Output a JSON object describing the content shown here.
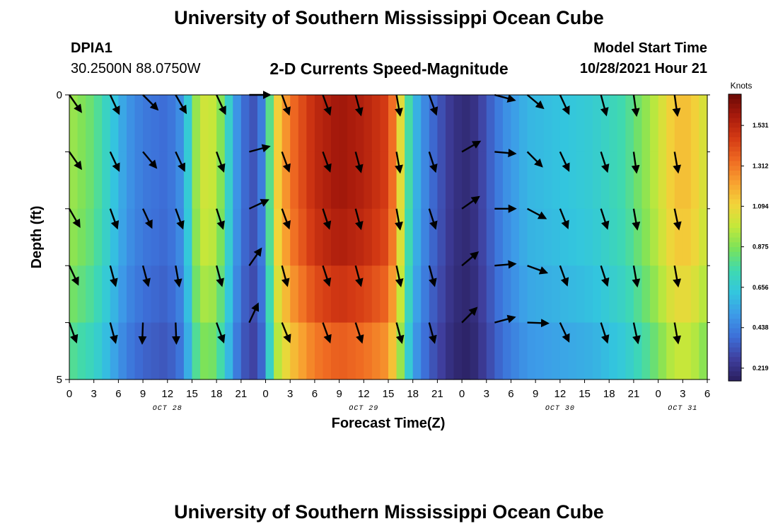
{
  "header": {
    "title": "University of Southern Mississippi Ocean Cube",
    "station": "DPIA1",
    "coords": "30.2500N  88.0750W",
    "subtitle": "2-D Currents Speed-Magnitude",
    "model_start_label": "Model Start Time",
    "model_start_value": "10/28/2021 Hour 21",
    "footer_title": "University of Southern Mississippi Ocean Cube"
  },
  "colors": {
    "colormap": [
      "#2a1f5e",
      "#3f3f9e",
      "#3d6fd8",
      "#3d9be8",
      "#33c6de",
      "#3fd9b0",
      "#7be25a",
      "#c4e83a",
      "#f2d43a",
      "#f8a030",
      "#ef6a22",
      "#d43a14",
      "#a81a0c",
      "#6a0a06"
    ]
  },
  "chart_data": {
    "type": "heatmap",
    "title": "2-D Currents Speed-Magnitude",
    "xlabel": "Forecast Time(Z)",
    "ylabel": "Depth (ft)",
    "x_tick_labels": [
      "0",
      "3",
      "6",
      "9",
      "12",
      "15",
      "18",
      "21",
      "0",
      "3",
      "6",
      "9",
      "12",
      "15",
      "18",
      "21",
      "0",
      "3",
      "6",
      "9",
      "12",
      "15",
      "18",
      "21",
      "0",
      "3",
      "6"
    ],
    "date_labels": [
      {
        "label": "OCT 28",
        "hour_offset": 12
      },
      {
        "label": "OCT 29",
        "hour_offset": 36
      },
      {
        "label": "OCT 30",
        "hour_offset": 60
      },
      {
        "label": "OCT 31",
        "hour_offset": 75
      }
    ],
    "y_tick_labels": [
      "0",
      "5"
    ],
    "ylim": [
      0,
      5
    ],
    "xlim_hours": [
      0,
      78
    ],
    "colorbar": {
      "label": "Knots",
      "range": [
        0.15,
        1.7
      ],
      "ticks": [
        "0.219",
        "0.438",
        "0.656",
        "0.875",
        "1.094",
        "1.312",
        "1.531"
      ]
    },
    "depth_rows": [
      0.5,
      1.5,
      2.5,
      3.5,
      4.5
    ],
    "speed_profile": [
      {
        "t": 0,
        "v": 0.93
      },
      {
        "t": 3,
        "v": 0.82
      },
      {
        "t": 5,
        "v": 0.66
      },
      {
        "t": 7,
        "v": 0.5
      },
      {
        "t": 9,
        "v": 0.42
      },
      {
        "t": 12,
        "v": 0.38
      },
      {
        "t": 14,
        "v": 0.5
      },
      {
        "t": 15,
        "v": 0.8
      },
      {
        "t": 16,
        "v": 1.02
      },
      {
        "t": 18,
        "v": 0.98
      },
      {
        "t": 19,
        "v": 0.78
      },
      {
        "t": 20,
        "v": 0.58
      },
      {
        "t": 21,
        "v": 0.4
      },
      {
        "t": 23,
        "v": 0.3
      },
      {
        "t": 24,
        "v": 0.55
      },
      {
        "t": 25,
        "v": 1.05
      },
      {
        "t": 27,
        "v": 1.32
      },
      {
        "t": 30,
        "v": 1.52
      },
      {
        "t": 33,
        "v": 1.6
      },
      {
        "t": 36,
        "v": 1.55
      },
      {
        "t": 39,
        "v": 1.45
      },
      {
        "t": 40,
        "v": 1.22
      },
      {
        "t": 41,
        "v": 0.9
      },
      {
        "t": 42,
        "v": 0.62
      },
      {
        "t": 44,
        "v": 0.4
      },
      {
        "t": 47,
        "v": 0.22
      },
      {
        "t": 49,
        "v": 0.19
      },
      {
        "t": 51,
        "v": 0.32
      },
      {
        "t": 53,
        "v": 0.46
      },
      {
        "t": 56,
        "v": 0.58
      },
      {
        "t": 60,
        "v": 0.62
      },
      {
        "t": 64,
        "v": 0.66
      },
      {
        "t": 68,
        "v": 0.76
      },
      {
        "t": 71,
        "v": 0.93
      },
      {
        "t": 74,
        "v": 1.15
      },
      {
        "t": 76,
        "v": 1.15
      },
      {
        "t": 78,
        "v": 1.0
      }
    ],
    "depth_factor": [
      1.0,
      1.0,
      0.98,
      0.93,
      0.86
    ],
    "vectors": [
      {
        "t": 0,
        "d": 0.5,
        "a": 55
      },
      {
        "t": 0,
        "d": 1.5,
        "a": 55
      },
      {
        "t": 0,
        "d": 2.5,
        "a": 60
      },
      {
        "t": 0,
        "d": 3.5,
        "a": 65
      },
      {
        "t": 0,
        "d": 4.5,
        "a": 70
      },
      {
        "t": 5,
        "d": 0.5,
        "a": 65
      },
      {
        "t": 5,
        "d": 1.5,
        "a": 65
      },
      {
        "t": 5,
        "d": 2.5,
        "a": 70
      },
      {
        "t": 5,
        "d": 3.5,
        "a": 75
      },
      {
        "t": 5,
        "d": 4.5,
        "a": 75
      },
      {
        "t": 9,
        "d": 0.5,
        "a": 45
      },
      {
        "t": 9,
        "d": 1.5,
        "a": 50
      },
      {
        "t": 9,
        "d": 2.5,
        "a": 65
      },
      {
        "t": 9,
        "d": 3.5,
        "a": 75
      },
      {
        "t": 9,
        "d": 4.5,
        "a": 92
      },
      {
        "t": 13,
        "d": 0.5,
        "a": 60
      },
      {
        "t": 13,
        "d": 1.5,
        "a": 65
      },
      {
        "t": 13,
        "d": 2.5,
        "a": 70
      },
      {
        "t": 13,
        "d": 3.5,
        "a": 80
      },
      {
        "t": 13,
        "d": 4.5,
        "a": 88
      },
      {
        "t": 18,
        "d": 0.5,
        "a": 65
      },
      {
        "t": 18,
        "d": 1.5,
        "a": 70
      },
      {
        "t": 18,
        "d": 2.5,
        "a": 72
      },
      {
        "t": 18,
        "d": 3.5,
        "a": 75
      },
      {
        "t": 18,
        "d": 4.5,
        "a": 70
      },
      {
        "t": 22,
        "d": 0.5,
        "a": 0
      },
      {
        "t": 22,
        "d": 1.5,
        "a": -15
      },
      {
        "t": 22,
        "d": 2.5,
        "a": -25
      },
      {
        "t": 22,
        "d": 3.5,
        "a": -55
      },
      {
        "t": 22,
        "d": 4.5,
        "a": -65
      },
      {
        "t": 26,
        "d": 0.5,
        "a": 70
      },
      {
        "t": 26,
        "d": 1.5,
        "a": 70
      },
      {
        "t": 26,
        "d": 2.5,
        "a": 70
      },
      {
        "t": 26,
        "d": 3.5,
        "a": 75
      },
      {
        "t": 26,
        "d": 4.5,
        "a": 68
      },
      {
        "t": 31,
        "d": 0.5,
        "a": 70
      },
      {
        "t": 31,
        "d": 1.5,
        "a": 70
      },
      {
        "t": 31,
        "d": 2.5,
        "a": 72
      },
      {
        "t": 31,
        "d": 3.5,
        "a": 72
      },
      {
        "t": 31,
        "d": 4.5,
        "a": 70
      },
      {
        "t": 35,
        "d": 0.5,
        "a": 75
      },
      {
        "t": 35,
        "d": 1.5,
        "a": 75
      },
      {
        "t": 35,
        "d": 2.5,
        "a": 75
      },
      {
        "t": 35,
        "d": 3.5,
        "a": 75
      },
      {
        "t": 35,
        "d": 4.5,
        "a": 72
      },
      {
        "t": 40,
        "d": 0.5,
        "a": 80
      },
      {
        "t": 40,
        "d": 1.5,
        "a": 80
      },
      {
        "t": 40,
        "d": 2.5,
        "a": 80
      },
      {
        "t": 40,
        "d": 3.5,
        "a": 78
      },
      {
        "t": 40,
        "d": 4.5,
        "a": 75
      },
      {
        "t": 44,
        "d": 0.5,
        "a": 70
      },
      {
        "t": 44,
        "d": 1.5,
        "a": 72
      },
      {
        "t": 44,
        "d": 2.5,
        "a": 72
      },
      {
        "t": 44,
        "d": 3.5,
        "a": 75
      },
      {
        "t": 44,
        "d": 4.5,
        "a": 75
      },
      {
        "t": 48,
        "d": 1.5,
        "a": -30
      },
      {
        "t": 48,
        "d": 2.5,
        "a": -35
      },
      {
        "t": 48,
        "d": 3.5,
        "a": -40
      },
      {
        "t": 48,
        "d": 4.5,
        "a": -45
      },
      {
        "t": 52,
        "d": 0.5,
        "a": 15
      },
      {
        "t": 52,
        "d": 1.5,
        "a": 5
      },
      {
        "t": 52,
        "d": 2.5,
        "a": 0
      },
      {
        "t": 52,
        "d": 3.5,
        "a": -5
      },
      {
        "t": 52,
        "d": 4.5,
        "a": -15
      },
      {
        "t": 56,
        "d": 0.5,
        "a": 40
      },
      {
        "t": 56,
        "d": 1.5,
        "a": 45
      },
      {
        "t": 56,
        "d": 2.5,
        "a": 28
      },
      {
        "t": 56,
        "d": 3.5,
        "a": 20
      },
      {
        "t": 56,
        "d": 4.5,
        "a": 2
      },
      {
        "t": 60,
        "d": 0.5,
        "a": 65
      },
      {
        "t": 60,
        "d": 1.5,
        "a": 65
      },
      {
        "t": 60,
        "d": 2.5,
        "a": 68
      },
      {
        "t": 60,
        "d": 3.5,
        "a": 70
      },
      {
        "t": 60,
        "d": 4.5,
        "a": 65
      },
      {
        "t": 65,
        "d": 0.5,
        "a": 75
      },
      {
        "t": 65,
        "d": 1.5,
        "a": 72
      },
      {
        "t": 65,
        "d": 2.5,
        "a": 72
      },
      {
        "t": 65,
        "d": 3.5,
        "a": 72
      },
      {
        "t": 65,
        "d": 4.5,
        "a": 72
      },
      {
        "t": 69,
        "d": 0.5,
        "a": 82
      },
      {
        "t": 69,
        "d": 1.5,
        "a": 82
      },
      {
        "t": 69,
        "d": 2.5,
        "a": 80
      },
      {
        "t": 69,
        "d": 3.5,
        "a": 80
      },
      {
        "t": 69,
        "d": 4.5,
        "a": 78
      },
      {
        "t": 74,
        "d": 0.5,
        "a": 82
      },
      {
        "t": 74,
        "d": 1.5,
        "a": 80
      },
      {
        "t": 74,
        "d": 2.5,
        "a": 78
      },
      {
        "t": 74,
        "d": 3.5,
        "a": 80
      },
      {
        "t": 74,
        "d": 4.5,
        "a": 80
      }
    ]
  }
}
